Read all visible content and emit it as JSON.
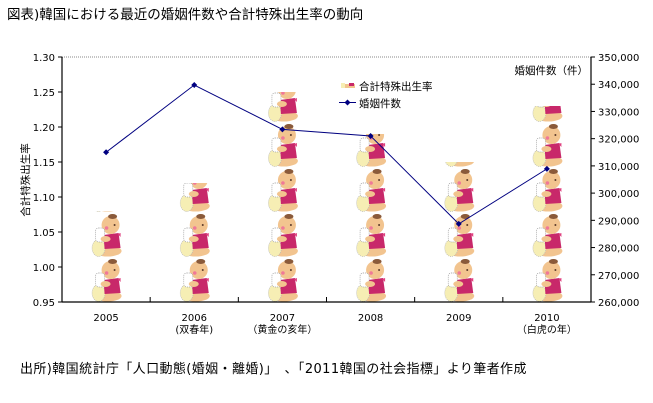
{
  "page": {
    "title": "図表)韓国における最近の婚姻件数や合計特殊出生率の動向",
    "source": "出所)韓国統計庁「人口動態(婚姻・離婚)」　、「2011韓国の社会指標」より筆者作成"
  },
  "colors": {
    "line": "#000080",
    "axis": "#000000",
    "plot_border": "#888888",
    "baby_skin": "#f2c48f",
    "baby_dress": "#c8286a",
    "baby_hair": "#8a5a3a"
  },
  "chart_data": {
    "type": "bar",
    "title": "図表)韓国における最近の婚姻件数や合計特殊出生率の動向",
    "categories": [
      "2005",
      "2006",
      "2007",
      "2008",
      "2009",
      "2010"
    ],
    "category_sublabels": [
      "",
      "(双春年)",
      "（黄金の亥年）",
      "",
      "",
      "（白虎の年）"
    ],
    "xlabel": "",
    "ylabel": "合計特殊出生率",
    "y2label": "婚姻件数（件）",
    "ylim": [
      0.95,
      1.3
    ],
    "y2lim": [
      260000,
      350000
    ],
    "y_ticks": [
      "0.95",
      "1.00",
      "1.05",
      "1.10",
      "1.15",
      "1.20",
      "1.25",
      "1.30"
    ],
    "y2_ticks": [
      "260,000",
      "270,000",
      "280,000",
      "290,000",
      "300,000",
      "310,000",
      "320,000",
      "330,000",
      "340,000",
      "350,000"
    ],
    "series": [
      {
        "name": "合計特殊出生率",
        "type": "bar",
        "style": "pictograph-baby",
        "axis": "left",
        "values": [
          1.08,
          1.12,
          1.25,
          1.19,
          1.15,
          1.23
        ]
      },
      {
        "name": "婚姻件数",
        "type": "line",
        "marker": "diamond",
        "axis": "right",
        "values": [
          315000,
          339700,
          323400,
          321000,
          288700,
          308900
        ]
      }
    ],
    "legend": {
      "position": "upper-right-inside",
      "entries": [
        "合計特殊出生率",
        "婚姻件数"
      ]
    },
    "grid": false
  }
}
